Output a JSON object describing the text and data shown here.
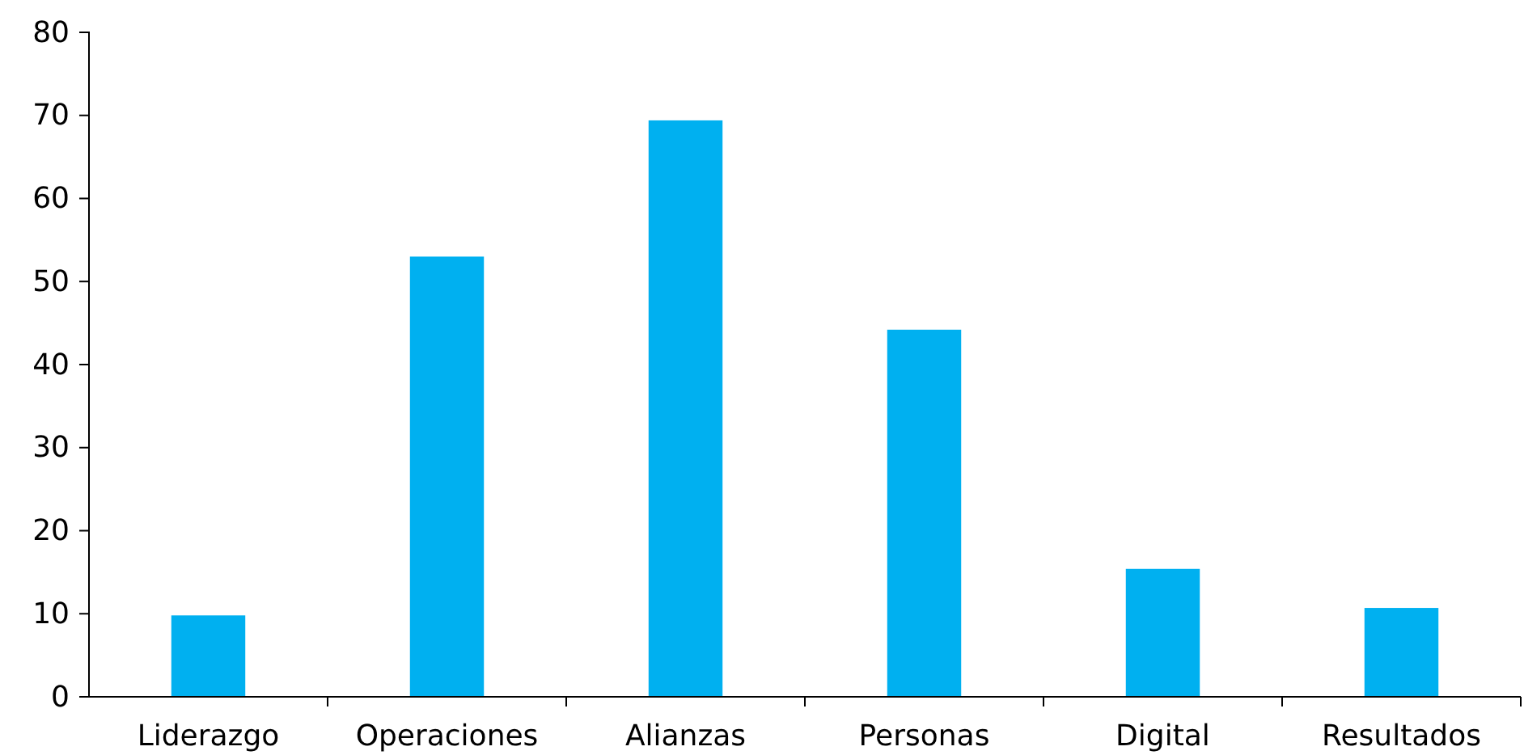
{
  "chart_data": {
    "type": "bar",
    "categories": [
      "Liderazgo",
      "Operaciones",
      "Alianzas",
      "Personas",
      "Digital",
      "Resultados"
    ],
    "values": [
      9.8,
      53,
      69.4,
      44.2,
      15.4,
      10.7
    ],
    "color": "#00b0f0",
    "ylim": [
      0,
      80
    ],
    "yticks": [
      0,
      10,
      20,
      30,
      40,
      50,
      60,
      70,
      80
    ],
    "grid": false
  }
}
